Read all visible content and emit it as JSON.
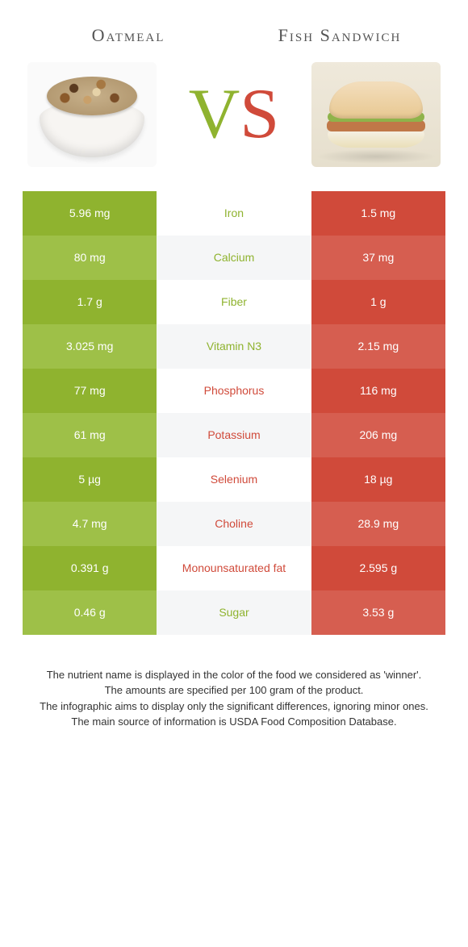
{
  "colors": {
    "left_primary": "#8fb32f",
    "left_alt": "#9ec048",
    "right_primary": "#d04a3a",
    "right_alt": "#d65e50",
    "nutrient_left": "#8fb32f",
    "nutrient_right": "#d04a3a",
    "mid_bg": "#ffffff",
    "mid_alt_bg": "#f5f6f7"
  },
  "header": {
    "left_title": "Oatmeal",
    "right_title": "Fish Sandwich",
    "vs_v": "V",
    "vs_s": "S"
  },
  "rows": [
    {
      "left": "5.96 mg",
      "nutrient": "Iron",
      "right": "1.5 mg",
      "winner": "left"
    },
    {
      "left": "80 mg",
      "nutrient": "Calcium",
      "right": "37 mg",
      "winner": "left"
    },
    {
      "left": "1.7 g",
      "nutrient": "Fiber",
      "right": "1 g",
      "winner": "left"
    },
    {
      "left": "3.025 mg",
      "nutrient": "Vitamin N3",
      "right": "2.15 mg",
      "winner": "left"
    },
    {
      "left": "77 mg",
      "nutrient": "Phosphorus",
      "right": "116 mg",
      "winner": "right"
    },
    {
      "left": "61 mg",
      "nutrient": "Potassium",
      "right": "206 mg",
      "winner": "right"
    },
    {
      "left": "5 µg",
      "nutrient": "Selenium",
      "right": "18 µg",
      "winner": "right"
    },
    {
      "left": "4.7 mg",
      "nutrient": "Choline",
      "right": "28.9 mg",
      "winner": "right"
    },
    {
      "left": "0.391 g",
      "nutrient": "Monounsaturated fat",
      "right": "2.595 g",
      "winner": "right"
    },
    {
      "left": "0.46 g",
      "nutrient": "Sugar",
      "right": "3.53 g",
      "winner": "left"
    }
  ],
  "footer": {
    "l1": "The nutrient name is displayed in the color of the food we considered as 'winner'.",
    "l2": "The amounts are specified per 100 gram of the product.",
    "l3": "The infographic aims to display only the significant differences, ignoring minor ones.",
    "l4": "The main source of information is USDA Food Composition Database."
  }
}
